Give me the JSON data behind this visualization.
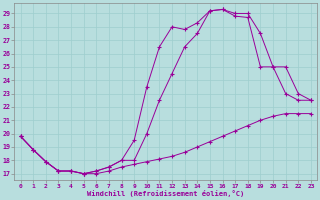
{
  "bg_color": "#b8dede",
  "grid_color": "#9ecece",
  "line_color": "#990099",
  "xlim_min": -0.5,
  "xlim_max": 23.5,
  "ylim_min": 16.5,
  "ylim_max": 29.8,
  "xticks": [
    0,
    1,
    2,
    3,
    4,
    5,
    6,
    7,
    8,
    9,
    10,
    11,
    12,
    13,
    14,
    15,
    16,
    17,
    18,
    19,
    20,
    21,
    22,
    23
  ],
  "yticks": [
    17,
    18,
    19,
    20,
    21,
    22,
    23,
    24,
    25,
    26,
    27,
    28,
    29
  ],
  "line1_x": [
    0,
    1,
    2,
    3,
    4,
    5,
    6,
    7,
    8,
    9,
    10,
    11,
    12,
    13,
    14,
    15,
    16,
    17,
    18,
    19,
    20,
    21,
    22,
    23
  ],
  "line1_y": [
    19.8,
    18.8,
    17.9,
    17.2,
    17.2,
    17.0,
    17.0,
    17.2,
    17.5,
    17.7,
    17.9,
    18.1,
    18.3,
    18.6,
    19.0,
    19.4,
    19.8,
    20.2,
    20.6,
    21.0,
    21.3,
    21.5,
    21.5,
    21.5
  ],
  "line2_x": [
    0,
    1,
    2,
    3,
    4,
    5,
    6,
    7,
    8,
    9,
    10,
    11,
    12,
    13,
    14,
    15,
    16,
    17,
    18,
    19,
    20,
    21,
    22,
    23
  ],
  "line2_y": [
    19.8,
    18.8,
    17.9,
    17.2,
    17.2,
    17.0,
    17.2,
    17.5,
    18.0,
    19.5,
    23.5,
    26.5,
    28.0,
    27.8,
    28.3,
    29.2,
    29.3,
    28.8,
    28.7,
    25.0,
    25.0,
    23.0,
    22.5,
    22.5
  ],
  "line3_x": [
    0,
    1,
    2,
    3,
    4,
    5,
    6,
    7,
    8,
    9,
    10,
    11,
    12,
    13,
    14,
    15,
    16,
    17,
    18,
    19,
    20,
    21,
    22,
    23
  ],
  "line3_y": [
    19.8,
    18.8,
    17.9,
    17.2,
    17.2,
    17.0,
    17.2,
    17.5,
    18.0,
    18.0,
    20.0,
    22.5,
    24.5,
    26.5,
    27.5,
    29.2,
    29.3,
    29.0,
    29.0,
    27.5,
    25.0,
    25.0,
    23.0,
    22.5
  ],
  "xlabel": "Windchill (Refroidissement éolien,°C)"
}
